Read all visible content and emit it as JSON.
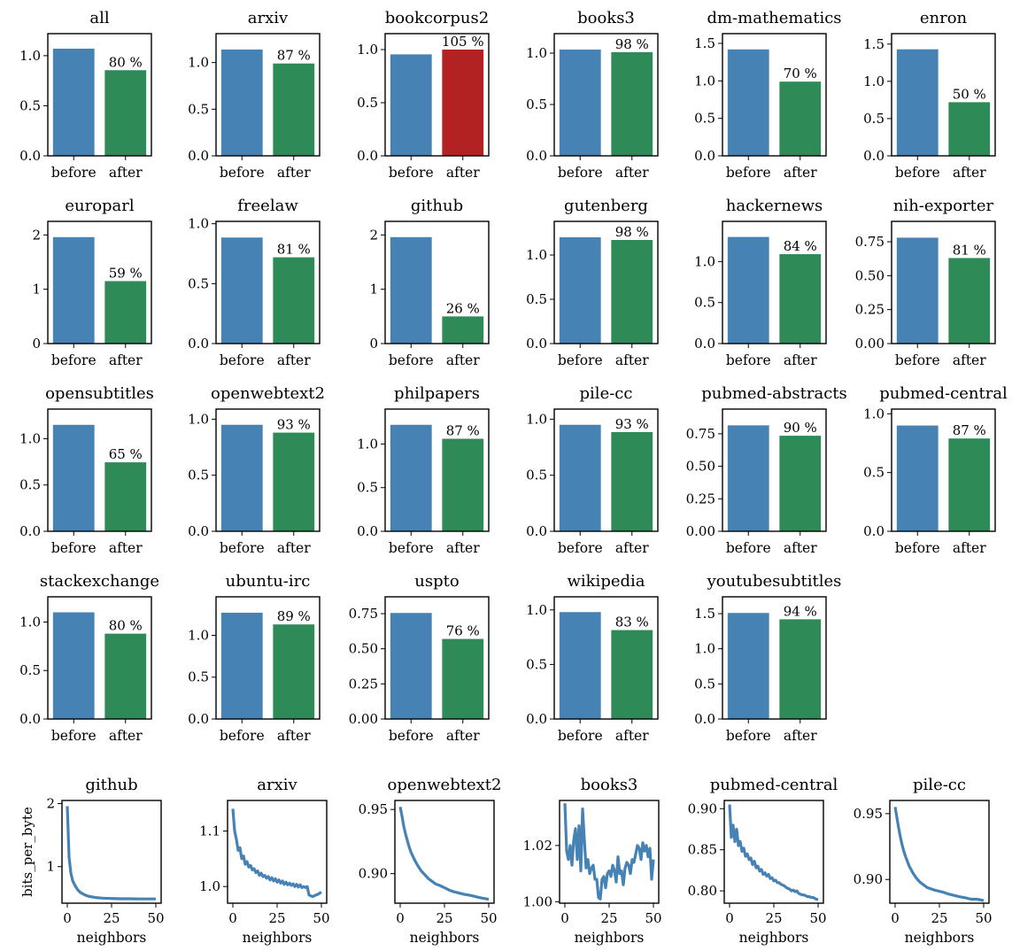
{
  "colors": {
    "before": "#4682b4",
    "after_lower": "#2e8b57",
    "after_higher": "#b22222",
    "line": "#4682b4"
  },
  "bar_categories": [
    "before",
    "after"
  ],
  "line_xlabel": "neighbors",
  "line_ylabel": "bits_per_byte",
  "chart_data": [
    {
      "type": "bar",
      "title": "all",
      "categories": [
        "before",
        "after"
      ],
      "values": [
        1.07,
        0.855
      ],
      "label": "80 %",
      "ylim": [
        0,
        1.22
      ],
      "yticks": [
        0,
        0.5,
        1.0
      ],
      "tick_labels": [
        "0.0",
        "0.5",
        "1.0"
      ]
    },
    {
      "type": "bar",
      "title": "arxiv",
      "categories": [
        "before",
        "after"
      ],
      "values": [
        1.14,
        0.99
      ],
      "label": "87 %",
      "ylim": [
        0,
        1.31
      ],
      "yticks": [
        0,
        0.5,
        1.0
      ],
      "tick_labels": [
        "0.0",
        "0.5",
        "1.0"
      ]
    },
    {
      "type": "bar",
      "title": "bookcorpus2",
      "categories": [
        "before",
        "after"
      ],
      "values": [
        0.955,
        1.0
      ],
      "label": "105 %",
      "ylim": [
        0,
        1.15
      ],
      "yticks": [
        0,
        0.5,
        1.0
      ],
      "tick_labels": [
        "0.0",
        "0.5",
        "1.0"
      ]
    },
    {
      "type": "bar",
      "title": "books3",
      "categories": [
        "before",
        "after"
      ],
      "values": [
        1.035,
        1.01
      ],
      "label": "98 %",
      "ylim": [
        0,
        1.19
      ],
      "yticks": [
        0,
        0.5,
        1.0
      ],
      "tick_labels": [
        "0.0",
        "0.5",
        "1.0"
      ]
    },
    {
      "type": "bar",
      "title": "dm-mathematics",
      "categories": [
        "before",
        "after"
      ],
      "values": [
        1.42,
        0.99
      ],
      "label": "70 %",
      "ylim": [
        0,
        1.63
      ],
      "yticks": [
        0,
        0.5,
        1.0,
        1.5
      ],
      "tick_labels": [
        "0.0",
        "0.5",
        "1.0",
        "1.5"
      ]
    },
    {
      "type": "bar",
      "title": "enron",
      "categories": [
        "before",
        "after"
      ],
      "values": [
        1.43,
        0.72
      ],
      "label": "50 %",
      "ylim": [
        0,
        1.64
      ],
      "yticks": [
        0,
        0.5,
        1.0,
        1.5
      ],
      "tick_labels": [
        "0.0",
        "0.5",
        "1.0",
        "1.5"
      ]
    },
    {
      "type": "bar",
      "title": "europarl",
      "categories": [
        "before",
        "after"
      ],
      "values": [
        1.96,
        1.15
      ],
      "label": "59 %",
      "ylim": [
        0,
        2.25
      ],
      "yticks": [
        0,
        1,
        2
      ],
      "tick_labels": [
        "0",
        "1",
        "2"
      ]
    },
    {
      "type": "bar",
      "title": "freelaw",
      "categories": [
        "before",
        "after"
      ],
      "values": [
        0.885,
        0.72
      ],
      "label": "81 %",
      "ylim": [
        0,
        1.02
      ],
      "yticks": [
        0,
        0.5,
        1.0
      ],
      "tick_labels": [
        "0.0",
        "0.5",
        "1.0"
      ]
    },
    {
      "type": "bar",
      "title": "github",
      "categories": [
        "before",
        "after"
      ],
      "values": [
        1.96,
        0.5
      ],
      "label": "26 %",
      "ylim": [
        0,
        2.25
      ],
      "yticks": [
        0,
        1,
        2
      ],
      "tick_labels": [
        "0",
        "1",
        "2"
      ]
    },
    {
      "type": "bar",
      "title": "gutenberg",
      "categories": [
        "before",
        "after"
      ],
      "values": [
        1.2,
        1.17
      ],
      "label": "98 %",
      "ylim": [
        0,
        1.38
      ],
      "yticks": [
        0,
        0.5,
        1.0
      ],
      "tick_labels": [
        "0.0",
        "0.5",
        "1.0"
      ]
    },
    {
      "type": "bar",
      "title": "hackernews",
      "categories": [
        "before",
        "after"
      ],
      "values": [
        1.3,
        1.09
      ],
      "label": "84 %",
      "ylim": [
        0,
        1.49
      ],
      "yticks": [
        0,
        0.5,
        1.0
      ],
      "tick_labels": [
        "0.0",
        "0.5",
        "1.0"
      ]
    },
    {
      "type": "bar",
      "title": "nih-exporter",
      "categories": [
        "before",
        "after"
      ],
      "values": [
        0.78,
        0.63
      ],
      "label": "81 %",
      "ylim": [
        0,
        0.9
      ],
      "yticks": [
        0,
        0.25,
        0.5,
        0.75
      ],
      "tick_labels": [
        "0.00",
        "0.25",
        "0.50",
        "0.75"
      ]
    },
    {
      "type": "bar",
      "title": "opensubtitles",
      "categories": [
        "before",
        "after"
      ],
      "values": [
        1.15,
        0.745
      ],
      "label": "65 %",
      "ylim": [
        0,
        1.32
      ],
      "yticks": [
        0,
        0.5,
        1.0
      ],
      "tick_labels": [
        "0.0",
        "0.5",
        "1.0"
      ]
    },
    {
      "type": "bar",
      "title": "openwebtext2",
      "categories": [
        "before",
        "after"
      ],
      "values": [
        0.95,
        0.88
      ],
      "label": "93 %",
      "ylim": [
        0,
        1.09
      ],
      "yticks": [
        0,
        0.5,
        1.0
      ],
      "tick_labels": [
        "0.0",
        "0.5",
        "1.0"
      ]
    },
    {
      "type": "bar",
      "title": "philpapers",
      "categories": [
        "before",
        "after"
      ],
      "values": [
        1.22,
        1.06
      ],
      "label": "87 %",
      "ylim": [
        0,
        1.4
      ],
      "yticks": [
        0,
        0.5,
        1.0
      ],
      "tick_labels": [
        "0.0",
        "0.5",
        "1.0"
      ]
    },
    {
      "type": "bar",
      "title": "pile-cc",
      "categories": [
        "before",
        "after"
      ],
      "values": [
        0.95,
        0.885
      ],
      "label": "93 %",
      "ylim": [
        0,
        1.09
      ],
      "yticks": [
        0,
        0.5,
        1.0
      ],
      "tick_labels": [
        "0.0",
        "0.5",
        "1.0"
      ]
    },
    {
      "type": "bar",
      "title": "pubmed-abstracts",
      "categories": [
        "before",
        "after"
      ],
      "values": [
        0.815,
        0.735
      ],
      "label": "90 %",
      "ylim": [
        0,
        0.94
      ],
      "yticks": [
        0,
        0.25,
        0.5,
        0.75
      ],
      "tick_labels": [
        "0.00",
        "0.25",
        "0.50",
        "0.75"
      ]
    },
    {
      "type": "bar",
      "title": "pubmed-central",
      "categories": [
        "before",
        "after"
      ],
      "values": [
        0.9,
        0.79
      ],
      "label": "87 %",
      "ylim": [
        0,
        1.04
      ],
      "yticks": [
        0,
        0.5,
        1.0
      ],
      "tick_labels": [
        "0.0",
        "0.5",
        "1.0"
      ]
    },
    {
      "type": "bar",
      "title": "stackexchange",
      "categories": [
        "before",
        "after"
      ],
      "values": [
        1.1,
        0.88
      ],
      "label": "80 %",
      "ylim": [
        0,
        1.26
      ],
      "yticks": [
        0,
        0.5,
        1.0
      ],
      "tick_labels": [
        "0.0",
        "0.5",
        "1.0"
      ]
    },
    {
      "type": "bar",
      "title": "ubuntu-irc",
      "categories": [
        "before",
        "after"
      ],
      "values": [
        1.27,
        1.13
      ],
      "label": "89 %",
      "ylim": [
        0,
        1.46
      ],
      "yticks": [
        0,
        0.5,
        1.0
      ],
      "tick_labels": [
        "0.0",
        "0.5",
        "1.0"
      ]
    },
    {
      "type": "bar",
      "title": "uspto",
      "categories": [
        "before",
        "after"
      ],
      "values": [
        0.755,
        0.57
      ],
      "label": "76 %",
      "ylim": [
        0,
        0.87
      ],
      "yticks": [
        0,
        0.25,
        0.5,
        0.75
      ],
      "tick_labels": [
        "0.00",
        "0.25",
        "0.50",
        "0.75"
      ]
    },
    {
      "type": "bar",
      "title": "wikipedia",
      "categories": [
        "before",
        "after"
      ],
      "values": [
        0.98,
        0.815
      ],
      "label": "83 %",
      "ylim": [
        0,
        1.12
      ],
      "yticks": [
        0,
        0.5,
        1.0
      ],
      "tick_labels": [
        "0.0",
        "0.5",
        "1.0"
      ]
    },
    {
      "type": "bar",
      "title": "youtubesubtitles",
      "categories": [
        "before",
        "after"
      ],
      "values": [
        1.51,
        1.42
      ],
      "label": "94 %",
      "ylim": [
        0,
        1.74
      ],
      "yticks": [
        0,
        0.5,
        1.0,
        1.5
      ],
      "tick_labels": [
        "0.0",
        "0.5",
        "1.0",
        "1.5"
      ]
    },
    {
      "type": "line",
      "title": "github",
      "xlabel": "neighbors",
      "ylabel": "bits_per_byte",
      "x": [
        0,
        1,
        2,
        3,
        4,
        5,
        6,
        7,
        8,
        9,
        10,
        12,
        14,
        16,
        18,
        20,
        25,
        30,
        35,
        40,
        45,
        50
      ],
      "y": [
        1.96,
        1.15,
        0.9,
        0.78,
        0.72,
        0.67,
        0.63,
        0.6,
        0.58,
        0.565,
        0.55,
        0.53,
        0.52,
        0.51,
        0.505,
        0.5,
        0.495,
        0.49,
        0.49,
        0.487,
        0.487,
        0.487
      ],
      "xlim": [
        -3,
        53
      ],
      "ylim": [
        0.42,
        2.05
      ],
      "xticks": [
        0,
        25,
        50
      ],
      "yticks": [
        1,
        2
      ],
      "tick_labels": [
        "1",
        "2"
      ]
    },
    {
      "type": "line",
      "title": "arxiv",
      "xlabel": "neighbors",
      "x": [
        0,
        1,
        2,
        3,
        4,
        5,
        6,
        7,
        8,
        9,
        10,
        11,
        12,
        13,
        14,
        15,
        16,
        17,
        18,
        19,
        20,
        21,
        22,
        23,
        24,
        25,
        26,
        27,
        28,
        29,
        30,
        31,
        32,
        33,
        34,
        35,
        36,
        37,
        38,
        39,
        40,
        41,
        42,
        43,
        44,
        45,
        46,
        47,
        48,
        49,
        50
      ],
      "y": [
        1.14,
        1.1,
        1.085,
        1.065,
        1.07,
        1.05,
        1.055,
        1.04,
        1.045,
        1.035,
        1.038,
        1.03,
        1.032,
        1.025,
        1.028,
        1.02,
        1.024,
        1.018,
        1.02,
        1.015,
        1.018,
        1.012,
        1.016,
        1.01,
        1.014,
        1.008,
        1.012,
        1.006,
        1.01,
        1.004,
        1.008,
        1.003,
        1.006,
        1.002,
        1.005,
        1.0,
        1.004,
        0.999,
        1.003,
        0.998,
        1.0,
        0.998,
        1.0,
        0.985,
        0.983,
        0.982,
        0.983,
        0.985,
        0.986,
        0.988,
        0.99
      ],
      "xlim": [
        -3,
        53
      ],
      "ylim": [
        0.97,
        1.155
      ],
      "xticks": [
        0,
        25,
        50
      ],
      "yticks": [
        1.0,
        1.1
      ],
      "tick_labels": [
        "1.0",
        "1.1"
      ]
    },
    {
      "type": "line",
      "title": "openwebtext2",
      "xlabel": "neighbors",
      "x": [
        0,
        1,
        2,
        3,
        4,
        5,
        6,
        8,
        10,
        12,
        14,
        16,
        18,
        20,
        22,
        25,
        28,
        30,
        33,
        36,
        40,
        43,
        46,
        50
      ],
      "y": [
        0.952,
        0.945,
        0.937,
        0.931,
        0.926,
        0.921,
        0.917,
        0.911,
        0.906,
        0.902,
        0.899,
        0.896,
        0.894,
        0.892,
        0.891,
        0.889,
        0.887,
        0.886,
        0.885,
        0.884,
        0.883,
        0.882,
        0.881,
        0.88
      ],
      "xlim": [
        -3,
        53
      ],
      "ylim": [
        0.877,
        0.957
      ],
      "xticks": [
        0,
        25,
        50
      ],
      "yticks": [
        0.9,
        0.95
      ],
      "tick_labels": [
        "0.90",
        "0.95"
      ]
    },
    {
      "type": "line",
      "title": "books3",
      "xlabel": "neighbors",
      "x": [
        0,
        1,
        2,
        3,
        4,
        5,
        6,
        7,
        8,
        9,
        10,
        11,
        12,
        13,
        14,
        15,
        16,
        17,
        18,
        19,
        20,
        21,
        22,
        23,
        24,
        25,
        26,
        27,
        28,
        29,
        30,
        31,
        32,
        33,
        34,
        35,
        36,
        37,
        38,
        39,
        40,
        41,
        42,
        43,
        44,
        45,
        46,
        47,
        48,
        49,
        50
      ],
      "y": [
        1.035,
        1.018,
        1.015,
        1.02,
        1.013,
        1.022,
        1.026,
        1.015,
        1.027,
        1.011,
        1.033,
        1.022,
        1.012,
        1.015,
        1.01,
        1.012,
        1.013,
        1.008,
        1.008,
        1.0015,
        1.001,
        1.008,
        1.009,
        1.005,
        1.01,
        1.011,
        1.009,
        1.013,
        1.011,
        1.007,
        1.016,
        1.01,
        1.011,
        1.006,
        1.012,
        1.014,
        1.013,
        1.01,
        1.015,
        1.014,
        1.017,
        1.02,
        1.019,
        1.015,
        1.021,
        1.018,
        1.02,
        1.016,
        1.019,
        1.008,
        1.015
      ],
      "xlim": [
        -3,
        53
      ],
      "ylim": [
        0.9995,
        1.036
      ],
      "xticks": [
        0,
        25,
        50
      ],
      "yticks": [
        1.0,
        1.02
      ],
      "tick_labels": [
        "1.00",
        "1.02"
      ]
    },
    {
      "type": "line",
      "title": "pubmed-central",
      "xlabel": "neighbors",
      "x": [
        0,
        1,
        2,
        3,
        4,
        5,
        6,
        7,
        8,
        9,
        10,
        11,
        12,
        13,
        14,
        15,
        16,
        17,
        18,
        19,
        20,
        21,
        22,
        23,
        24,
        25,
        26,
        27,
        28,
        29,
        30,
        31,
        32,
        33,
        34,
        35,
        36,
        37,
        38,
        39,
        40,
        41,
        42,
        43,
        44,
        45,
        46,
        47,
        48,
        49,
        50
      ],
      "y": [
        0.905,
        0.865,
        0.88,
        0.86,
        0.875,
        0.855,
        0.86,
        0.848,
        0.852,
        0.842,
        0.845,
        0.838,
        0.84,
        0.832,
        0.836,
        0.828,
        0.83,
        0.824,
        0.826,
        0.82,
        0.822,
        0.818,
        0.82,
        0.815,
        0.816,
        0.812,
        0.813,
        0.81,
        0.81,
        0.808,
        0.807,
        0.806,
        0.804,
        0.803,
        0.802,
        0.8,
        0.801,
        0.799,
        0.8,
        0.797,
        0.796,
        0.795,
        0.795,
        0.794,
        0.793,
        0.793,
        0.792,
        0.792,
        0.791,
        0.79,
        0.789
      ],
      "xlim": [
        -3,
        53
      ],
      "ylim": [
        0.785,
        0.91
      ],
      "xticks": [
        0,
        25,
        50
      ],
      "yticks": [
        0.8,
        0.85,
        0.9
      ],
      "tick_labels": [
        "0.80",
        "0.85",
        "0.90"
      ]
    },
    {
      "type": "line",
      "title": "pile-cc",
      "xlabel": "neighbors",
      "x": [
        0,
        1,
        2,
        3,
        4,
        5,
        6,
        8,
        10,
        12,
        14,
        16,
        18,
        20,
        22,
        25,
        28,
        30,
        33,
        36,
        40,
        43,
        46,
        50
      ],
      "y": [
        0.955,
        0.947,
        0.939,
        0.932,
        0.926,
        0.921,
        0.917,
        0.91,
        0.905,
        0.901,
        0.898,
        0.896,
        0.894,
        0.893,
        0.892,
        0.891,
        0.89,
        0.889,
        0.888,
        0.887,
        0.886,
        0.885,
        0.885,
        0.884
      ],
      "xlim": [
        -3,
        53
      ],
      "ylim": [
        0.882,
        0.96
      ],
      "xticks": [
        0,
        25,
        50
      ],
      "yticks": [
        0.9,
        0.95
      ],
      "tick_labels": [
        "0.90",
        "0.95"
      ]
    }
  ]
}
